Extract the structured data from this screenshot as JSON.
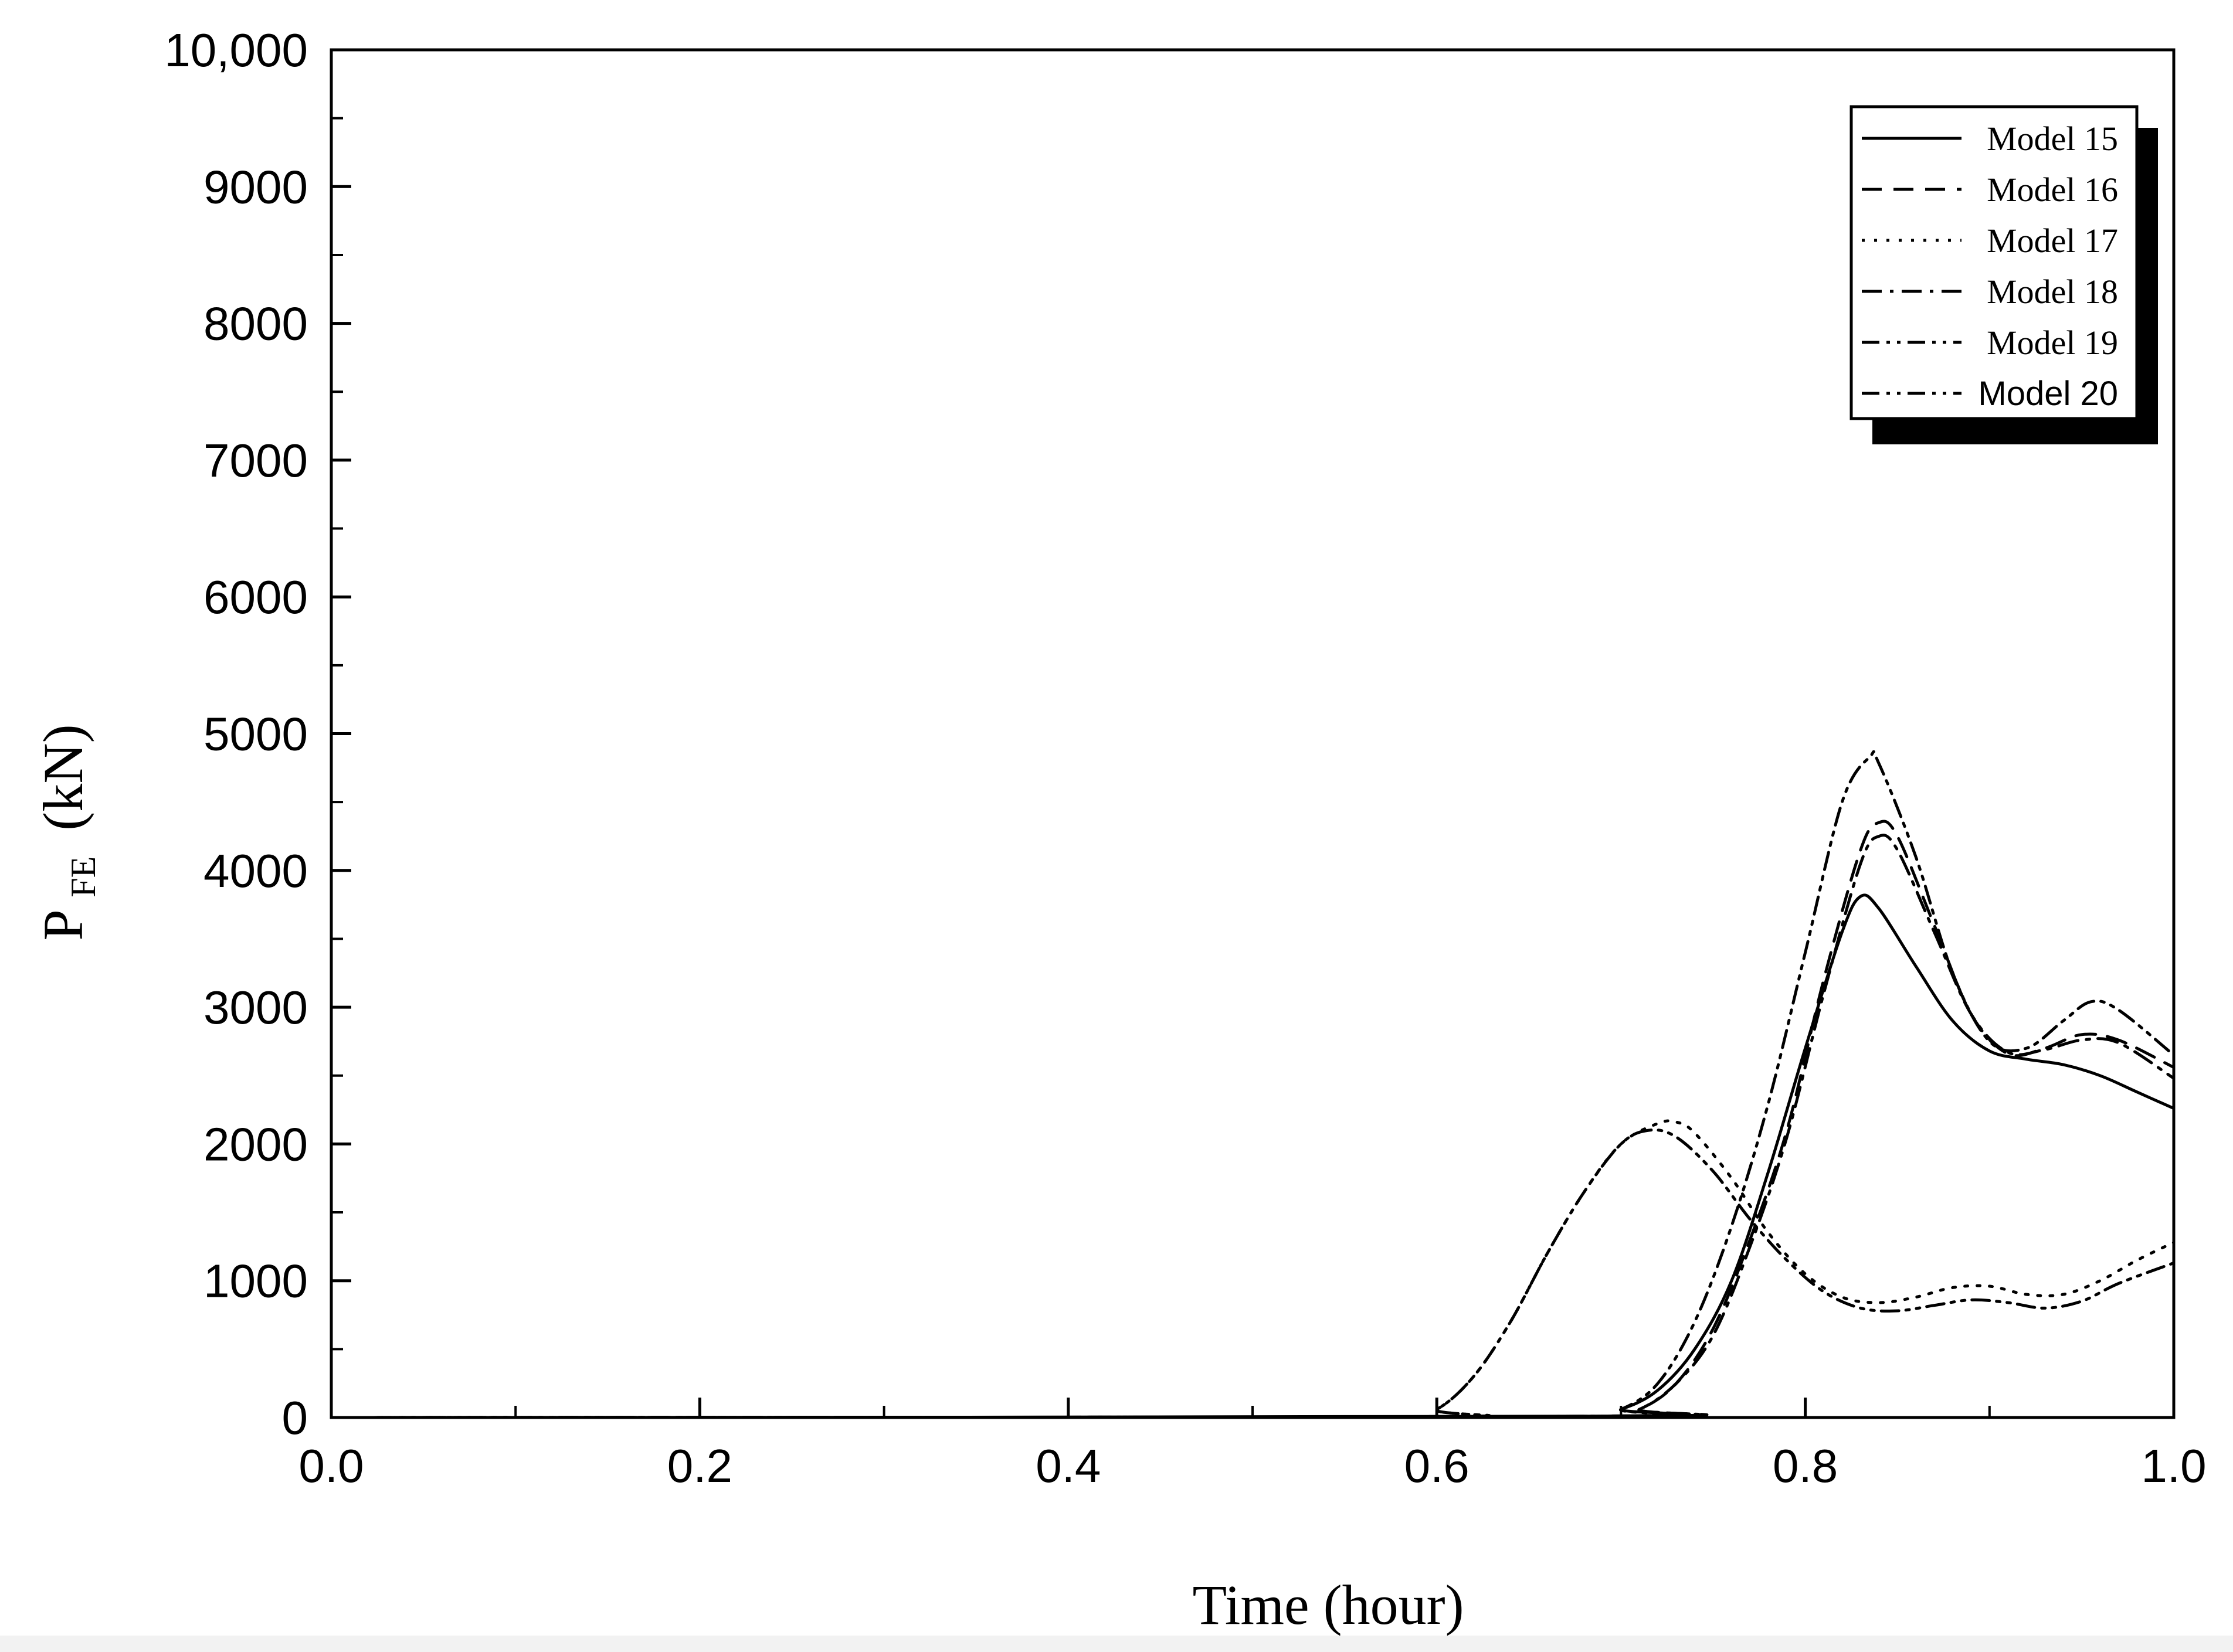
{
  "chart_data": {
    "type": "line",
    "title": "",
    "xlabel": "Time (hour)",
    "ylabel": {
      "main": "P",
      "subscript": "FE",
      "unit": "(kN)"
    },
    "xlim": [
      0,
      1
    ],
    "ylim": [
      0,
      10000
    ],
    "x_ticks": [
      0.0,
      0.2,
      0.4,
      0.6,
      0.8,
      1.0
    ],
    "x_tick_labels": [
      "0.0",
      "0.2",
      "0.4",
      "0.6",
      "0.8",
      "1.0"
    ],
    "x_minor_ticks": [
      0.1,
      0.3,
      0.5,
      0.7,
      0.9
    ],
    "y_ticks": [
      0,
      1000,
      2000,
      3000,
      4000,
      5000,
      6000,
      7000,
      8000,
      9000,
      10000
    ],
    "y_tick_labels": [
      "0",
      "1000",
      "2000",
      "3000",
      "4000",
      "5000",
      "6000",
      "7000",
      "8000",
      "9000",
      "10,000"
    ],
    "legend_position": "top-right",
    "grid": false,
    "series": [
      {
        "name": "Model 15",
        "dash": "solid",
        "x": [
          0.0,
          0.68,
          0.7,
          0.72,
          0.74,
          0.76,
          0.78,
          0.8,
          0.82,
          0.83,
          0.84,
          0.86,
          0.88,
          0.9,
          0.92,
          0.94,
          0.96,
          0.98,
          1.0
        ],
        "y": [
          0,
          10,
          60,
          200,
          500,
          1000,
          1800,
          2700,
          3550,
          3810,
          3720,
          3300,
          2900,
          2680,
          2620,
          2580,
          2500,
          2380,
          2260
        ]
      },
      {
        "name": "Model 16",
        "dash": "dashed",
        "x": [
          0.0,
          0.69,
          0.71,
          0.73,
          0.75,
          0.77,
          0.79,
          0.81,
          0.83,
          0.84,
          0.85,
          0.87,
          0.89,
          0.91,
          0.93,
          0.95,
          0.97,
          1.0
        ],
        "y": [
          0,
          10,
          60,
          250,
          650,
          1300,
          2100,
          3200,
          4150,
          4350,
          4250,
          3600,
          2950,
          2660,
          2700,
          2800,
          2760,
          2560
        ]
      },
      {
        "name": "Model 17",
        "dash": "dotted",
        "x": [
          0.0,
          0.58,
          0.6,
          0.62,
          0.64,
          0.66,
          0.68,
          0.7,
          0.72,
          0.73,
          0.74,
          0.76,
          0.78,
          0.8,
          0.82,
          0.84,
          0.86,
          0.88,
          0.9,
          0.92,
          0.94,
          0.96,
          0.98,
          1.0
        ],
        "y": [
          0,
          5,
          60,
          300,
          700,
          1200,
          1650,
          2000,
          2150,
          2160,
          2080,
          1750,
          1350,
          1050,
          880,
          840,
          880,
          950,
          960,
          900,
          900,
          1000,
          1150,
          1280
        ]
      },
      {
        "name": "Model 18",
        "dash": "dashdot",
        "x": [
          0.0,
          0.69,
          0.71,
          0.73,
          0.75,
          0.77,
          0.79,
          0.81,
          0.83,
          0.84,
          0.85,
          0.87,
          0.89,
          0.91,
          0.93,
          0.95,
          0.97,
          1.0
        ],
        "y": [
          0,
          10,
          60,
          250,
          600,
          1250,
          2050,
          3100,
          4050,
          4250,
          4150,
          3550,
          2950,
          2670,
          2690,
          2760,
          2740,
          2480
        ]
      },
      {
        "name": "Model 19",
        "dash": "dashdotdot",
        "x": [
          0.0,
          0.58,
          0.6,
          0.62,
          0.64,
          0.66,
          0.68,
          0.7,
          0.715,
          0.73,
          0.75,
          0.77,
          0.79,
          0.81,
          0.83,
          0.85,
          0.87,
          0.89,
          0.91,
          0.93,
          0.95,
          0.97,
          1.0
        ],
        "y": [
          0,
          5,
          60,
          300,
          700,
          1200,
          1650,
          2000,
          2100,
          2050,
          1800,
          1450,
          1150,
          920,
          800,
          780,
          820,
          860,
          840,
          800,
          850,
          980,
          1130
        ]
      },
      {
        "name": "Model 20",
        "dash": "dashdotdot",
        "x": [
          0.0,
          0.68,
          0.7,
          0.72,
          0.74,
          0.76,
          0.78,
          0.8,
          0.82,
          0.835,
          0.84,
          0.86,
          0.88,
          0.9,
          0.92,
          0.94,
          0.955,
          0.97,
          1.0
        ],
        "y": [
          0,
          10,
          60,
          250,
          700,
          1400,
          2300,
          3400,
          4500,
          4830,
          4780,
          4100,
          3250,
          2750,
          2700,
          2900,
          3040,
          2980,
          2650
        ]
      }
    ]
  }
}
